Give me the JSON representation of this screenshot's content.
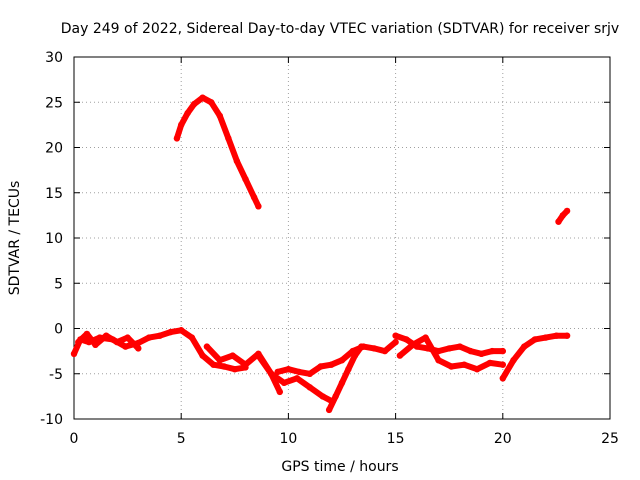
{
  "chart_data": {
    "type": "scatter",
    "title": "Day 249 of 2022, Sidereal Day-to-day VTEC variation (SDTVAR) for receiver srjv",
    "xlabel": "GPS time / hours",
    "ylabel": "SDTVAR / TECUs",
    "xlim": [
      0,
      25
    ],
    "ylim": [
      -10,
      30
    ],
    "xticks": [
      0,
      5,
      10,
      15,
      20,
      25
    ],
    "yticks": [
      -10,
      -5,
      0,
      5,
      10,
      15,
      20,
      25,
      30
    ],
    "grid": true,
    "legend": "none",
    "series_color": "#ff0000",
    "series": [
      {
        "name": "arc-early-low",
        "x": [
          0.0,
          0.3,
          0.7,
          1.2,
          1.8,
          2.4,
          3.0,
          3.5,
          4.0,
          4.5,
          5.0
        ],
        "y": [
          -2.8,
          -1.2,
          -1.5,
          -1.0,
          -1.2,
          -2.0,
          -1.6,
          -1.0,
          -0.8,
          -0.4,
          -0.2
        ]
      },
      {
        "name": "arc-early-mid",
        "x": [
          0.2,
          0.6,
          1.0,
          1.5,
          2.0,
          2.5,
          3.0
        ],
        "y": [
          -1.5,
          -0.6,
          -1.8,
          -0.8,
          -1.5,
          -1.0,
          -2.2
        ]
      },
      {
        "name": "arc-high",
        "x": [
          4.8,
          5.0,
          5.3,
          5.6,
          6.0,
          6.4,
          6.8,
          7.2,
          7.6,
          8.0,
          8.4,
          8.6
        ],
        "y": [
          21.0,
          22.5,
          23.8,
          24.8,
          25.5,
          25.0,
          23.5,
          21.0,
          18.5,
          16.5,
          14.5,
          13.5
        ]
      },
      {
        "name": "arc-midday-a",
        "x": [
          5.0,
          5.5,
          6.0,
          6.5,
          7.0,
          7.5,
          8.0
        ],
        "y": [
          -0.2,
          -1.0,
          -3.0,
          -4.0,
          -4.2,
          -4.5,
          -4.3
        ]
      },
      {
        "name": "arc-midday-b",
        "x": [
          6.2,
          6.8,
          7.4,
          8.0,
          8.6,
          9.2,
          9.6
        ],
        "y": [
          -2.0,
          -3.5,
          -3.0,
          -4.0,
          -2.8,
          -5.0,
          -7.0
        ]
      },
      {
        "name": "arc-midday-c",
        "x": [
          8.6,
          9.2,
          9.8,
          10.4,
          11.0,
          11.6,
          12.0
        ],
        "y": [
          -3.0,
          -5.0,
          -6.0,
          -5.5,
          -6.5,
          -7.5,
          -8.0
        ]
      },
      {
        "name": "arc-midday-d",
        "x": [
          9.5,
          10.0,
          10.5,
          11.0,
          11.5,
          12.0,
          12.5,
          13.0,
          13.5,
          14.0,
          14.5,
          15.0
        ],
        "y": [
          -4.8,
          -4.5,
          -4.8,
          -5.0,
          -4.2,
          -4.0,
          -3.5,
          -2.5,
          -2.0,
          -2.2,
          -2.5,
          -1.5
        ]
      },
      {
        "name": "arc-noon-dip",
        "x": [
          11.9,
          12.2,
          12.5,
          12.8,
          13.1,
          13.4
        ],
        "y": [
          -9.0,
          -7.5,
          -6.0,
          -4.5,
          -3.0,
          -2.0
        ]
      },
      {
        "name": "arc-afternoon-a",
        "x": [
          15.0,
          15.5,
          16.0,
          16.5,
          17.0,
          17.5,
          18.0,
          18.5,
          19.0,
          19.5,
          20.0
        ],
        "y": [
          -0.8,
          -1.2,
          -2.0,
          -2.2,
          -2.5,
          -2.2,
          -2.0,
          -2.5,
          -2.8,
          -2.5,
          -2.5
        ]
      },
      {
        "name": "arc-afternoon-b",
        "x": [
          15.2,
          15.8,
          16.4,
          17.0,
          17.6,
          18.2,
          18.8,
          19.4,
          20.0
        ],
        "y": [
          -3.0,
          -1.8,
          -1.0,
          -3.5,
          -4.2,
          -4.0,
          -4.5,
          -3.8,
          -4.0
        ]
      },
      {
        "name": "arc-late",
        "x": [
          20.0,
          20.5,
          21.0,
          21.5,
          22.0,
          22.5,
          23.0
        ],
        "y": [
          -5.5,
          -3.5,
          -2.0,
          -1.2,
          -1.0,
          -0.8,
          -0.8
        ]
      },
      {
        "name": "arc-late-high",
        "x": [
          22.6,
          22.8,
          23.0
        ],
        "y": [
          11.8,
          12.5,
          13.0
        ]
      }
    ]
  }
}
